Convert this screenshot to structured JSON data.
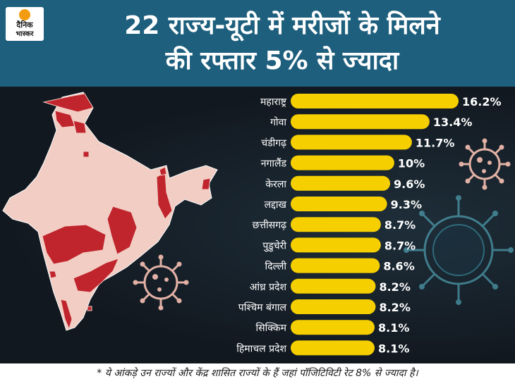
{
  "header": {
    "logo_line1": "दैनिक",
    "logo_line2": "भास्कर",
    "title_line1": "22 राज्य-यूटी में मरीजों के मिलने",
    "title_line2": "की रफ्तार 5% से ज्यादा"
  },
  "colors": {
    "bar": "#f5cf00",
    "map_highlight": "#c0242c",
    "map_base": "#f1cdc4",
    "virus": "#e2b1a5"
  },
  "chart_data": {
    "type": "bar",
    "orientation": "horizontal",
    "title": "22 राज्य-यूटी में मरीजों के मिलने की रफ्तार 5% से ज्यादा",
    "categories": [
      "महाराष्ट्र",
      "गोवा",
      "चंडीगढ़",
      "नगालैंड",
      "केरला",
      "लद्दाख",
      "छत्तीसगढ़",
      "पुडुचेरी",
      "दिल्ली",
      "आंध्र प्रदेश",
      "पश्चिम बंगाल",
      "सिक्किम",
      "हिमाचल प्रदेश"
    ],
    "values": [
      16.2,
      13.4,
      11.7,
      10,
      9.6,
      9.3,
      8.7,
      8.7,
      8.6,
      8.2,
      8.2,
      8.1,
      8.1
    ],
    "value_labels": [
      "16.2%",
      "13.4%",
      "11.7%",
      "10%",
      "9.6%",
      "9.3%",
      "8.7%",
      "8.7%",
      "8.6%",
      "8.2%",
      "8.2%",
      "8.1%",
      "8.1%"
    ],
    "unit": "%",
    "xlim": [
      0,
      16.2
    ]
  },
  "footnote": "* ये आंकड़े उन राज्यों और केंद्र शासित राज्यों के हैं जहां पॉजिटिविटी रेट 8% से ज्यादा है।"
}
